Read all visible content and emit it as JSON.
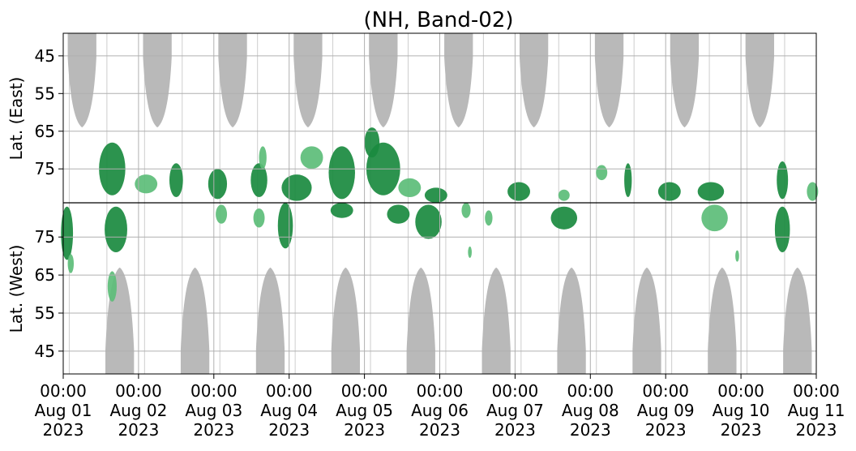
{
  "chart_data": {
    "type": "heatmap",
    "title": "(NH, Band-02)",
    "xlabel": "",
    "ylabel_top": "Lat. (East)",
    "ylabel_bottom": "Lat. (West)",
    "x_ticks": [
      {
        "time": "00:00",
        "day": "Aug 01",
        "year": "2023"
      },
      {
        "time": "00:00",
        "day": "Aug 02",
        "year": "2023"
      },
      {
        "time": "00:00",
        "day": "Aug 03",
        "year": "2023"
      },
      {
        "time": "00:00",
        "day": "Aug 04",
        "year": "2023"
      },
      {
        "time": "00:00",
        "day": "Aug 05",
        "year": "2023"
      },
      {
        "time": "00:00",
        "day": "Aug 06",
        "year": "2023"
      },
      {
        "time": "00:00",
        "day": "Aug 07",
        "year": "2023"
      },
      {
        "time": "00:00",
        "day": "Aug 08",
        "year": "2023"
      },
      {
        "time": "00:00",
        "day": "Aug 09",
        "year": "2023"
      },
      {
        "time": "00:00",
        "day": "Aug 10",
        "year": "2023"
      },
      {
        "time": "00:00",
        "day": "Aug 11",
        "year": "2023"
      }
    ],
    "xlim": [
      "2023-08-01 00:00",
      "2023-08-11 00:00"
    ],
    "y_ticks_east": [
      45,
      55,
      65,
      75
    ],
    "y_ticks_west": [
      75,
      65,
      55,
      45
    ],
    "ylim_east": [
      39,
      84
    ],
    "ylim_west": [
      84,
      39
    ],
    "grid": true,
    "colors": {
      "gray": "#b9b9b9",
      "green_dark": "#1a8a3f",
      "green_light": "#5cbd78",
      "grid": "#b0b0b0",
      "divider": "#000000"
    },
    "no_data_regions": {
      "color": "gray",
      "east_day_centers": [
        0.25,
        1.25,
        2.25,
        3.25,
        4.25,
        5.25,
        6.25,
        7.25,
        8.25,
        9.25
      ],
      "east_min_lat": 64,
      "west_day_centers": [
        0.75,
        1.75,
        2.75,
        3.75,
        4.75,
        5.75,
        6.75,
        7.75,
        8.75,
        9.75
      ],
      "west_min_lat": 67
    },
    "echo_blobs": [
      {
        "day": 0.05,
        "hemisphere": "west",
        "lat": 76,
        "day_width": 0.16,
        "lat_height": 14,
        "intensity": "dark"
      },
      {
        "day": 0.1,
        "hemisphere": "west",
        "lat": 68,
        "day_width": 0.08,
        "lat_height": 5,
        "intensity": "light"
      },
      {
        "day": 0.65,
        "hemisphere": "east",
        "lat": 75,
        "day_width": 0.35,
        "lat_height": 14,
        "intensity": "dark"
      },
      {
        "day": 0.7,
        "hemisphere": "west",
        "lat": 77,
        "day_width": 0.3,
        "lat_height": 12,
        "intensity": "dark"
      },
      {
        "day": 0.65,
        "hemisphere": "west",
        "lat": 62,
        "day_width": 0.12,
        "lat_height": 8,
        "intensity": "light"
      },
      {
        "day": 1.1,
        "hemisphere": "east",
        "lat": 79,
        "day_width": 0.3,
        "lat_height": 5,
        "intensity": "light"
      },
      {
        "day": 1.5,
        "hemisphere": "east",
        "lat": 78,
        "day_width": 0.18,
        "lat_height": 9,
        "intensity": "dark"
      },
      {
        "day": 2.05,
        "hemisphere": "east",
        "lat": 79,
        "day_width": 0.25,
        "lat_height": 8,
        "intensity": "dark"
      },
      {
        "day": 2.1,
        "hemisphere": "west",
        "lat": 81,
        "day_width": 0.15,
        "lat_height": 5,
        "intensity": "light"
      },
      {
        "day": 2.6,
        "hemisphere": "east",
        "lat": 78,
        "day_width": 0.22,
        "lat_height": 9,
        "intensity": "dark"
      },
      {
        "day": 2.65,
        "hemisphere": "east",
        "lat": 72,
        "day_width": 0.1,
        "lat_height": 6,
        "intensity": "light"
      },
      {
        "day": 2.6,
        "hemisphere": "west",
        "lat": 80,
        "day_width": 0.15,
        "lat_height": 5,
        "intensity": "light"
      },
      {
        "day": 3.1,
        "hemisphere": "east",
        "lat": 80,
        "day_width": 0.4,
        "lat_height": 7,
        "intensity": "dark"
      },
      {
        "day": 2.95,
        "hemisphere": "west",
        "lat": 78,
        "day_width": 0.2,
        "lat_height": 12,
        "intensity": "dark"
      },
      {
        "day": 3.3,
        "hemisphere": "east",
        "lat": 72,
        "day_width": 0.3,
        "lat_height": 6,
        "intensity": "light"
      },
      {
        "day": 3.7,
        "hemisphere": "east",
        "lat": 76,
        "day_width": 0.35,
        "lat_height": 14,
        "intensity": "dark"
      },
      {
        "day": 3.7,
        "hemisphere": "west",
        "lat": 82,
        "day_width": 0.3,
        "lat_height": 4,
        "intensity": "dark"
      },
      {
        "day": 4.1,
        "hemisphere": "east",
        "lat": 68,
        "day_width": 0.2,
        "lat_height": 8,
        "intensity": "dark"
      },
      {
        "day": 4.25,
        "hemisphere": "east",
        "lat": 75,
        "day_width": 0.45,
        "lat_height": 14,
        "intensity": "dark"
      },
      {
        "day": 4.45,
        "hemisphere": "west",
        "lat": 81,
        "day_width": 0.3,
        "lat_height": 5,
        "intensity": "dark"
      },
      {
        "day": 4.6,
        "hemisphere": "east",
        "lat": 80,
        "day_width": 0.3,
        "lat_height": 5,
        "intensity": "light"
      },
      {
        "day": 4.95,
        "hemisphere": "east",
        "lat": 82,
        "day_width": 0.3,
        "lat_height": 4,
        "intensity": "dark"
      },
      {
        "day": 4.85,
        "hemisphere": "west",
        "lat": 79,
        "day_width": 0.35,
        "lat_height": 9,
        "intensity": "dark"
      },
      {
        "day": 5.35,
        "hemisphere": "west",
        "lat": 82,
        "day_width": 0.12,
        "lat_height": 4,
        "intensity": "light"
      },
      {
        "day": 5.4,
        "hemisphere": "west",
        "lat": 71,
        "day_width": 0.05,
        "lat_height": 3,
        "intensity": "light"
      },
      {
        "day": 5.65,
        "hemisphere": "west",
        "lat": 80,
        "day_width": 0.1,
        "lat_height": 4,
        "intensity": "light"
      },
      {
        "day": 6.05,
        "hemisphere": "east",
        "lat": 81,
        "day_width": 0.3,
        "lat_height": 5,
        "intensity": "dark"
      },
      {
        "day": 6.65,
        "hemisphere": "west",
        "lat": 80,
        "day_width": 0.35,
        "lat_height": 6,
        "intensity": "dark"
      },
      {
        "day": 6.65,
        "hemisphere": "east",
        "lat": 82,
        "day_width": 0.15,
        "lat_height": 3,
        "intensity": "light"
      },
      {
        "day": 7.15,
        "hemisphere": "east",
        "lat": 76,
        "day_width": 0.15,
        "lat_height": 4,
        "intensity": "light"
      },
      {
        "day": 7.5,
        "hemisphere": "east",
        "lat": 78,
        "day_width": 0.1,
        "lat_height": 9,
        "intensity": "dark"
      },
      {
        "day": 8.05,
        "hemisphere": "east",
        "lat": 81,
        "day_width": 0.3,
        "lat_height": 5,
        "intensity": "dark"
      },
      {
        "day": 8.6,
        "hemisphere": "east",
        "lat": 81,
        "day_width": 0.35,
        "lat_height": 5,
        "intensity": "dark"
      },
      {
        "day": 8.65,
        "hemisphere": "west",
        "lat": 80,
        "day_width": 0.35,
        "lat_height": 7,
        "intensity": "light"
      },
      {
        "day": 8.95,
        "hemisphere": "west",
        "lat": 70,
        "day_width": 0.05,
        "lat_height": 3,
        "intensity": "light"
      },
      {
        "day": 9.55,
        "hemisphere": "east",
        "lat": 78,
        "day_width": 0.15,
        "lat_height": 10,
        "intensity": "dark"
      },
      {
        "day": 9.55,
        "hemisphere": "west",
        "lat": 77,
        "day_width": 0.2,
        "lat_height": 12,
        "intensity": "dark"
      },
      {
        "day": 9.95,
        "hemisphere": "east",
        "lat": 81,
        "day_width": 0.15,
        "lat_height": 5,
        "intensity": "light"
      }
    ]
  }
}
